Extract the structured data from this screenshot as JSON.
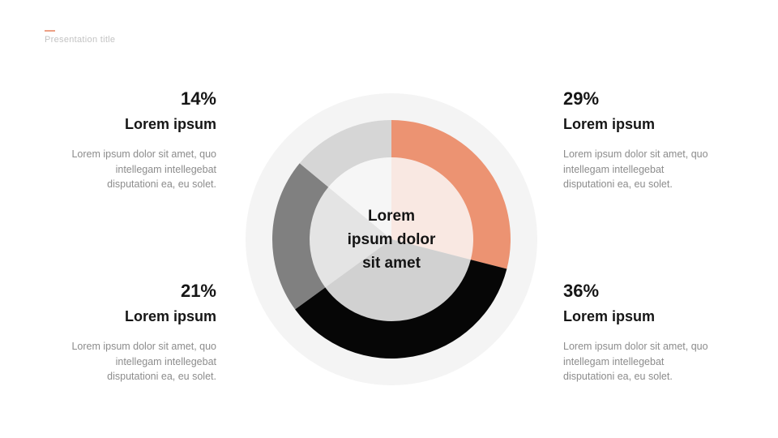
{
  "slide": {
    "eyebrow": "Presentation title",
    "background_color": "#FFFFFF",
    "accent_color": "#EDA085",
    "eyebrow_color": "#C3C3C3",
    "heading_color": "#161616",
    "body_color": "#8C8C8C"
  },
  "chart_data": {
    "type": "pie",
    "subtype": "donut-with-tinted-inner-pie",
    "center_label": "Lorem\nipsum dolor\nsit amet",
    "start_angle_deg": 0,
    "direction": "clockwise",
    "halo_color": "#F4F4F4",
    "categories": [
      "Lorem ipsum",
      "Lorem ipsum",
      "Lorem ipsum",
      "Lorem ipsum"
    ],
    "values": [
      29,
      36,
      21,
      14
    ],
    "segments": [
      {
        "name": "Lorem ipsum",
        "value_pct": 29,
        "ring_color": "#EC9372",
        "inner_color": "#F9E8E2",
        "callout": "top-right"
      },
      {
        "name": "Lorem ipsum",
        "value_pct": 36,
        "ring_color": "#060606",
        "inner_color": "#D1D1D1",
        "callout": "bottom-right"
      },
      {
        "name": "Lorem ipsum",
        "value_pct": 21,
        "ring_color": "#808080",
        "inner_color": "#E4E4E4",
        "callout": "bottom-left"
      },
      {
        "name": "Lorem ipsum",
        "value_pct": 14,
        "ring_color": "#D6D6D6",
        "inner_color": "#F6F6F6",
        "callout": "top-left"
      }
    ],
    "legend_position": "none",
    "grid": false
  },
  "callouts": {
    "top_left": {
      "percent": "14%",
      "title": "Lorem ipsum",
      "body": "Lorem ipsum dolor sit amet, quo\nintellegam intellegebat\ndisputationi ea, eu solet."
    },
    "top_right": {
      "percent": "29%",
      "title": "Lorem ipsum",
      "body": "Lorem ipsum dolor sit amet, quo\nintellegam intellegebat\ndisputationi ea, eu solet."
    },
    "bottom_left": {
      "percent": "21%",
      "title": "Lorem ipsum",
      "body": "Lorem ipsum dolor sit amet, quo\nintellegam intellegebat\ndisputationi ea, eu solet."
    },
    "bottom_right": {
      "percent": "36%",
      "title": "Lorem ipsum",
      "body": "Lorem ipsum dolor sit amet, quo\nintellegam intellegebat\ndisputationi ea, eu solet."
    }
  }
}
